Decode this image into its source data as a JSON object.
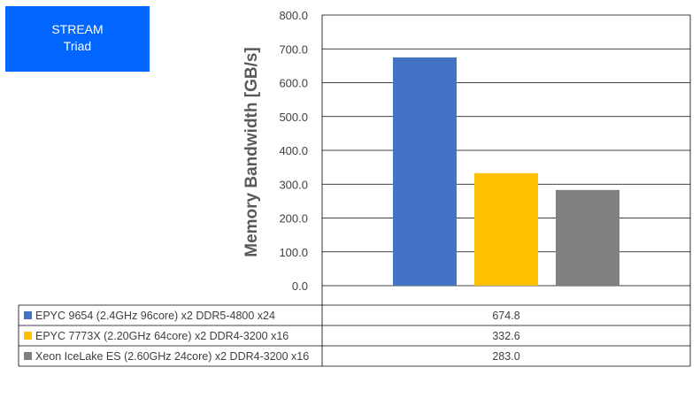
{
  "chart_data": {
    "type": "bar",
    "title": "STREAM",
    "subtitle": "Triad",
    "ylabel": "Memory Bandwidth [GB/s]",
    "ylim": [
      0,
      800
    ],
    "yticks": [
      "0.0",
      "100.0",
      "200.0",
      "300.0",
      "400.0",
      "500.0",
      "600.0",
      "700.0",
      "800.0"
    ],
    "grid": true,
    "legend": "data-table",
    "series": [
      {
        "name": "EPYC 9654 (2.4GHz 96core) x2 DDR5-4800 x24",
        "value": 674.8,
        "label": "674.8",
        "color": "#4472c4"
      },
      {
        "name": "EPYC 7773X (2.20GHz 64core) x2 DDR4-3200 x16",
        "value": 332.6,
        "label": "332.6",
        "color": "#ffc000"
      },
      {
        "name": "Xeon IceLake ES (2.60GHz 24core) x2 DDR4-3200 x16",
        "value": 283.0,
        "label": "283.0",
        "color": "#808080"
      }
    ]
  }
}
